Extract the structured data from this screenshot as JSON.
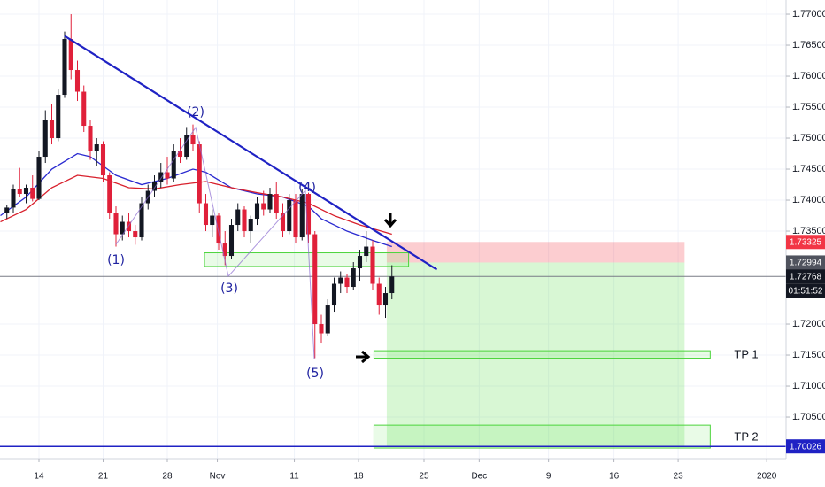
{
  "chart_data": {
    "type": "candlestick",
    "up_color": "#131722",
    "down_color": "#e0203a",
    "grid": true,
    "xlim": [
      -3.034,
      58.207
    ],
    "ylim": [
      1.69829,
      1.77229
    ],
    "xticks": [
      {
        "value": 0,
        "label": "14"
      },
      {
        "value": 5,
        "label": "21"
      },
      {
        "value": 10,
        "label": "28"
      },
      {
        "value": 13.9,
        "label": "Nov"
      },
      {
        "value": 19.9,
        "label": "11"
      },
      {
        "value": 24.9,
        "label": "18"
      },
      {
        "value": 30,
        "label": "25"
      },
      {
        "value": 34.3,
        "label": "Dec"
      },
      {
        "value": 39.7,
        "label": "9"
      },
      {
        "value": 44.8,
        "label": "16"
      },
      {
        "value": 49.8,
        "label": "23"
      },
      {
        "value": 56.7,
        "label": "2020"
      }
    ],
    "yticks": [
      {
        "value": 1.77,
        "label": "1.77000"
      },
      {
        "value": 1.765,
        "label": "1.76500"
      },
      {
        "value": 1.76,
        "label": "1.76000"
      },
      {
        "value": 1.755,
        "label": "1.75500"
      },
      {
        "value": 1.75,
        "label": "1.75000"
      },
      {
        "value": 1.745,
        "label": "1.74500"
      },
      {
        "value": 1.74,
        "label": "1.74000"
      },
      {
        "value": 1.735,
        "label": "1.73500"
      },
      {
        "value": 1.72,
        "label": "1.72000"
      },
      {
        "value": 1.715,
        "label": "1.71500"
      },
      {
        "value": 1.71,
        "label": "1.71000"
      },
      {
        "value": 1.705,
        "label": "1.70500"
      }
    ],
    "candles": {
      "x": [
        -2.5,
        -2,
        -1.5,
        -1,
        -0.5,
        0,
        0.5,
        1,
        1.5,
        2,
        2.5,
        3,
        3.5,
        4,
        4.5,
        5,
        5.5,
        6,
        6.5,
        7,
        7.5,
        8,
        8.5,
        9,
        9.5,
        10,
        10.5,
        11,
        11.5,
        12,
        12.5,
        13,
        13.5,
        14,
        14.5,
        15,
        15.5,
        16,
        16.5,
        17,
        17.5,
        18,
        18.5,
        19,
        19.5,
        20,
        20.5,
        21,
        21.5,
        22,
        22.5,
        23,
        23.5,
        24,
        24.5,
        25,
        25.5,
        26,
        26.5,
        27,
        27.5
      ],
      "open": [
        1.738,
        1.7388,
        1.7418,
        1.741,
        1.742,
        1.7402,
        1.747,
        1.753,
        1.75,
        1.757,
        1.766,
        1.761,
        1.7575,
        1.752,
        1.748,
        1.749,
        1.744,
        1.738,
        1.7345,
        1.7365,
        1.735,
        1.734,
        1.7395,
        1.7415,
        1.743,
        1.7445,
        1.7435,
        1.748,
        1.747,
        1.7505,
        1.749,
        1.7395,
        1.736,
        1.7375,
        1.733,
        1.731,
        1.736,
        1.7385,
        1.735,
        1.737,
        1.7395,
        1.7385,
        1.741,
        1.738,
        1.735,
        1.74,
        1.734,
        1.741,
        1.7345,
        1.72,
        1.7185,
        1.723,
        1.7265,
        1.7275,
        1.726,
        1.729,
        1.731,
        1.7325,
        1.7265,
        1.723,
        1.725
      ],
      "high": [
        1.7392,
        1.7425,
        1.7452,
        1.7425,
        1.744,
        1.748,
        1.7545,
        1.7555,
        1.758,
        1.7672,
        1.77,
        1.7625,
        1.7585,
        1.753,
        1.75,
        1.7495,
        1.7445,
        1.739,
        1.7375,
        1.738,
        1.736,
        1.7405,
        1.7425,
        1.744,
        1.746,
        1.747,
        1.749,
        1.75,
        1.7518,
        1.7522,
        1.7495,
        1.741,
        1.7385,
        1.738,
        1.735,
        1.737,
        1.7395,
        1.739,
        1.7375,
        1.7405,
        1.7415,
        1.742,
        1.743,
        1.7395,
        1.741,
        1.741,
        1.7418,
        1.7412,
        1.735,
        1.7215,
        1.724,
        1.7275,
        1.7285,
        1.728,
        1.73,
        1.732,
        1.735,
        1.7335,
        1.7275,
        1.726,
        1.7295
      ],
      "low": [
        1.737,
        1.738,
        1.7405,
        1.7395,
        1.7398,
        1.74,
        1.746,
        1.749,
        1.7495,
        1.7565,
        1.7595,
        1.756,
        1.751,
        1.7465,
        1.7455,
        1.743,
        1.737,
        1.7325,
        1.7335,
        1.734,
        1.7328,
        1.7335,
        1.7385,
        1.7405,
        1.742,
        1.7425,
        1.743,
        1.746,
        1.7465,
        1.748,
        1.738,
        1.735,
        1.734,
        1.732,
        1.7295,
        1.7305,
        1.735,
        1.734,
        1.733,
        1.736,
        1.7375,
        1.738,
        1.737,
        1.734,
        1.7345,
        1.733,
        1.7335,
        1.733,
        1.7145,
        1.717,
        1.718,
        1.722,
        1.725,
        1.725,
        1.7255,
        1.727,
        1.73,
        1.7255,
        1.7215,
        1.721,
        1.724
      ],
      "close": [
        1.7388,
        1.7418,
        1.741,
        1.742,
        1.7402,
        1.747,
        1.753,
        1.75,
        1.757,
        1.766,
        1.761,
        1.7575,
        1.752,
        1.748,
        1.749,
        1.744,
        1.738,
        1.7345,
        1.7365,
        1.735,
        1.734,
        1.7395,
        1.7415,
        1.743,
        1.7445,
        1.7435,
        1.748,
        1.747,
        1.7505,
        1.749,
        1.7395,
        1.736,
        1.7375,
        1.733,
        1.731,
        1.736,
        1.7385,
        1.735,
        1.737,
        1.7395,
        1.7385,
        1.741,
        1.738,
        1.735,
        1.74,
        1.734,
        1.741,
        1.7345,
        1.72,
        1.7185,
        1.723,
        1.7265,
        1.7275,
        1.726,
        1.729,
        1.731,
        1.7325,
        1.7265,
        1.723,
        1.725,
        1.72768
      ]
    },
    "lines": [
      {
        "color": "#2a2ad0",
        "x": [
          -3,
          -1,
          1,
          3,
          4,
          5,
          6,
          8,
          10,
          12,
          13,
          15,
          17,
          19,
          21,
          22,
          24,
          26,
          27.5
        ],
        "values": [
          1.7375,
          1.7405,
          1.745,
          1.7475,
          1.747,
          1.7455,
          1.744,
          1.7425,
          1.7435,
          1.745,
          1.7445,
          1.742,
          1.741,
          1.7405,
          1.739,
          1.737,
          1.735,
          1.7335,
          1.7325
        ]
      },
      {
        "color": "#d8202c",
        "x": [
          -3,
          -1,
          1,
          3,
          5,
          7,
          9,
          11,
          13,
          15,
          17,
          19,
          21,
          23,
          25,
          27.5
        ],
        "values": [
          1.7365,
          1.7385,
          1.742,
          1.744,
          1.7435,
          1.742,
          1.7418,
          1.7425,
          1.743,
          1.742,
          1.7412,
          1.7405,
          1.7395,
          1.7375,
          1.736,
          1.7345
        ]
      }
    ],
    "trendline": {
      "color": "#1f22c4",
      "x": [
        2,
        31
      ],
      "values": [
        1.7665,
        1.7288
      ]
    },
    "zones": [
      {
        "fill": "rgba(242,54,69,0.25)",
        "x": [
          27.1,
          50.3
        ],
        "values": [
          1.73325,
          1.72994
        ]
      },
      {
        "fill": "rgba(76,220,60,0.22)",
        "x": [
          27.1,
          50.3
        ],
        "values": [
          1.72994,
          1.70026
        ]
      }
    ],
    "boxes": [
      {
        "x": [
          12.9,
          28.8
        ],
        "values": [
          1.7315,
          1.7293
        ]
      },
      {
        "x": [
          26.1,
          52.3
        ],
        "values": [
          1.7157,
          1.7145
        ]
      },
      {
        "x": [
          26.1,
          52.3
        ],
        "values": [
          1.7037,
          1.7
        ]
      }
    ],
    "hlines": [
      {
        "value": 1.72768,
        "color": "#787b86"
      },
      {
        "value": 1.70026,
        "color": "#1f22c4"
      }
    ],
    "price_tags": [
      {
        "value": 1.73325,
        "label": "1.73325",
        "color": "#f23645"
      },
      {
        "value": 1.72994,
        "label": "1.72994",
        "color": "#50535e"
      },
      {
        "value": 1.72768,
        "label": "1.72768",
        "color": "#131722"
      },
      {
        "value": 1.70026,
        "label": "1.70026",
        "color": "#1f22c4"
      }
    ],
    "countdown": "01:51:52",
    "wave_labels": [
      "(1)",
      "(2)",
      "(3)",
      "(4)",
      "(5)"
    ],
    "tp_labels": [
      "TP 1",
      "TP 2"
    ]
  }
}
